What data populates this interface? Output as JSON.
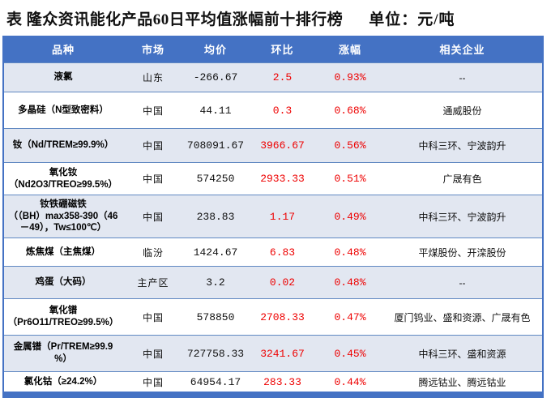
{
  "title": {
    "text": "表 隆众资讯能化产品60日平均值涨幅前十排行榜",
    "unit": "单位：元/吨"
  },
  "colors": {
    "header_bg": "#4472c4",
    "stripe_row_bg": "#e2e7f1",
    "value_red": "#ee0000",
    "border_blue": "#6088c2"
  },
  "table": {
    "headers": {
      "variety": "品种",
      "market": "市场",
      "avg_price": "均价",
      "chain_change": "环比",
      "gain": "涨幅",
      "companies": "相关企业"
    },
    "rows": [
      {
        "name": "液氯",
        "market": "山东",
        "avg": "-266.67",
        "chain": "2.5",
        "gain": "0.93%",
        "companies": "--"
      },
      {
        "name": "多晶硅（N型致密料）",
        "market": "中国",
        "avg": "44.11",
        "chain": "0.3",
        "gain": "0.68%",
        "companies": "通威股份"
      },
      {
        "name": "钕（Nd/TREM≥99.9%）",
        "market": "中国",
        "avg": "708091.67",
        "chain": "3966.67",
        "gain": "0.56%",
        "companies": "中科三环、宁波韵升"
      },
      {
        "name": "氧化钕\n（Nd2O3/TREO≥99.5%）",
        "market": "中国",
        "avg": "574250",
        "chain": "2933.33",
        "gain": "0.51%",
        "companies": "广晟有色"
      },
      {
        "name": "钕铁硼磁铁\n（（BH）max358-390（46\n－49），Tw≤100℃）",
        "market": "中国",
        "avg": "238.83",
        "chain": "1.17",
        "gain": "0.49%",
        "companies": "中科三环、宁波韵升"
      },
      {
        "name": "炼焦煤（主焦煤）",
        "market": "临汾",
        "avg": "1424.67",
        "chain": "6.83",
        "gain": "0.48%",
        "companies": "平煤股份、开滦股份"
      },
      {
        "name": "鸡蛋（大码）",
        "market": "主产区",
        "avg": "3.2",
        "chain": "0.02",
        "gain": "0.48%",
        "companies": "--"
      },
      {
        "name": "氧化镨\n（Pr6O11/TREO≥99.5%）",
        "market": "中国",
        "avg": "578850",
        "chain": "2708.33",
        "gain": "0.47%",
        "companies": "厦门钨业、盛和资源、广晟有色"
      },
      {
        "name": "金属镨（Pr/TREM≥99.9\n%）",
        "market": "中国",
        "avg": "727758.33",
        "chain": "3241.67",
        "gain": "0.45%",
        "companies": "中科三环、盛和资源"
      },
      {
        "name": "氯化钴（≥24.2%）",
        "market": "中国",
        "avg": "64954.17",
        "chain": "283.33",
        "gain": "0.44%",
        "companies": "腾远钴业、腾远钴业"
      }
    ]
  }
}
